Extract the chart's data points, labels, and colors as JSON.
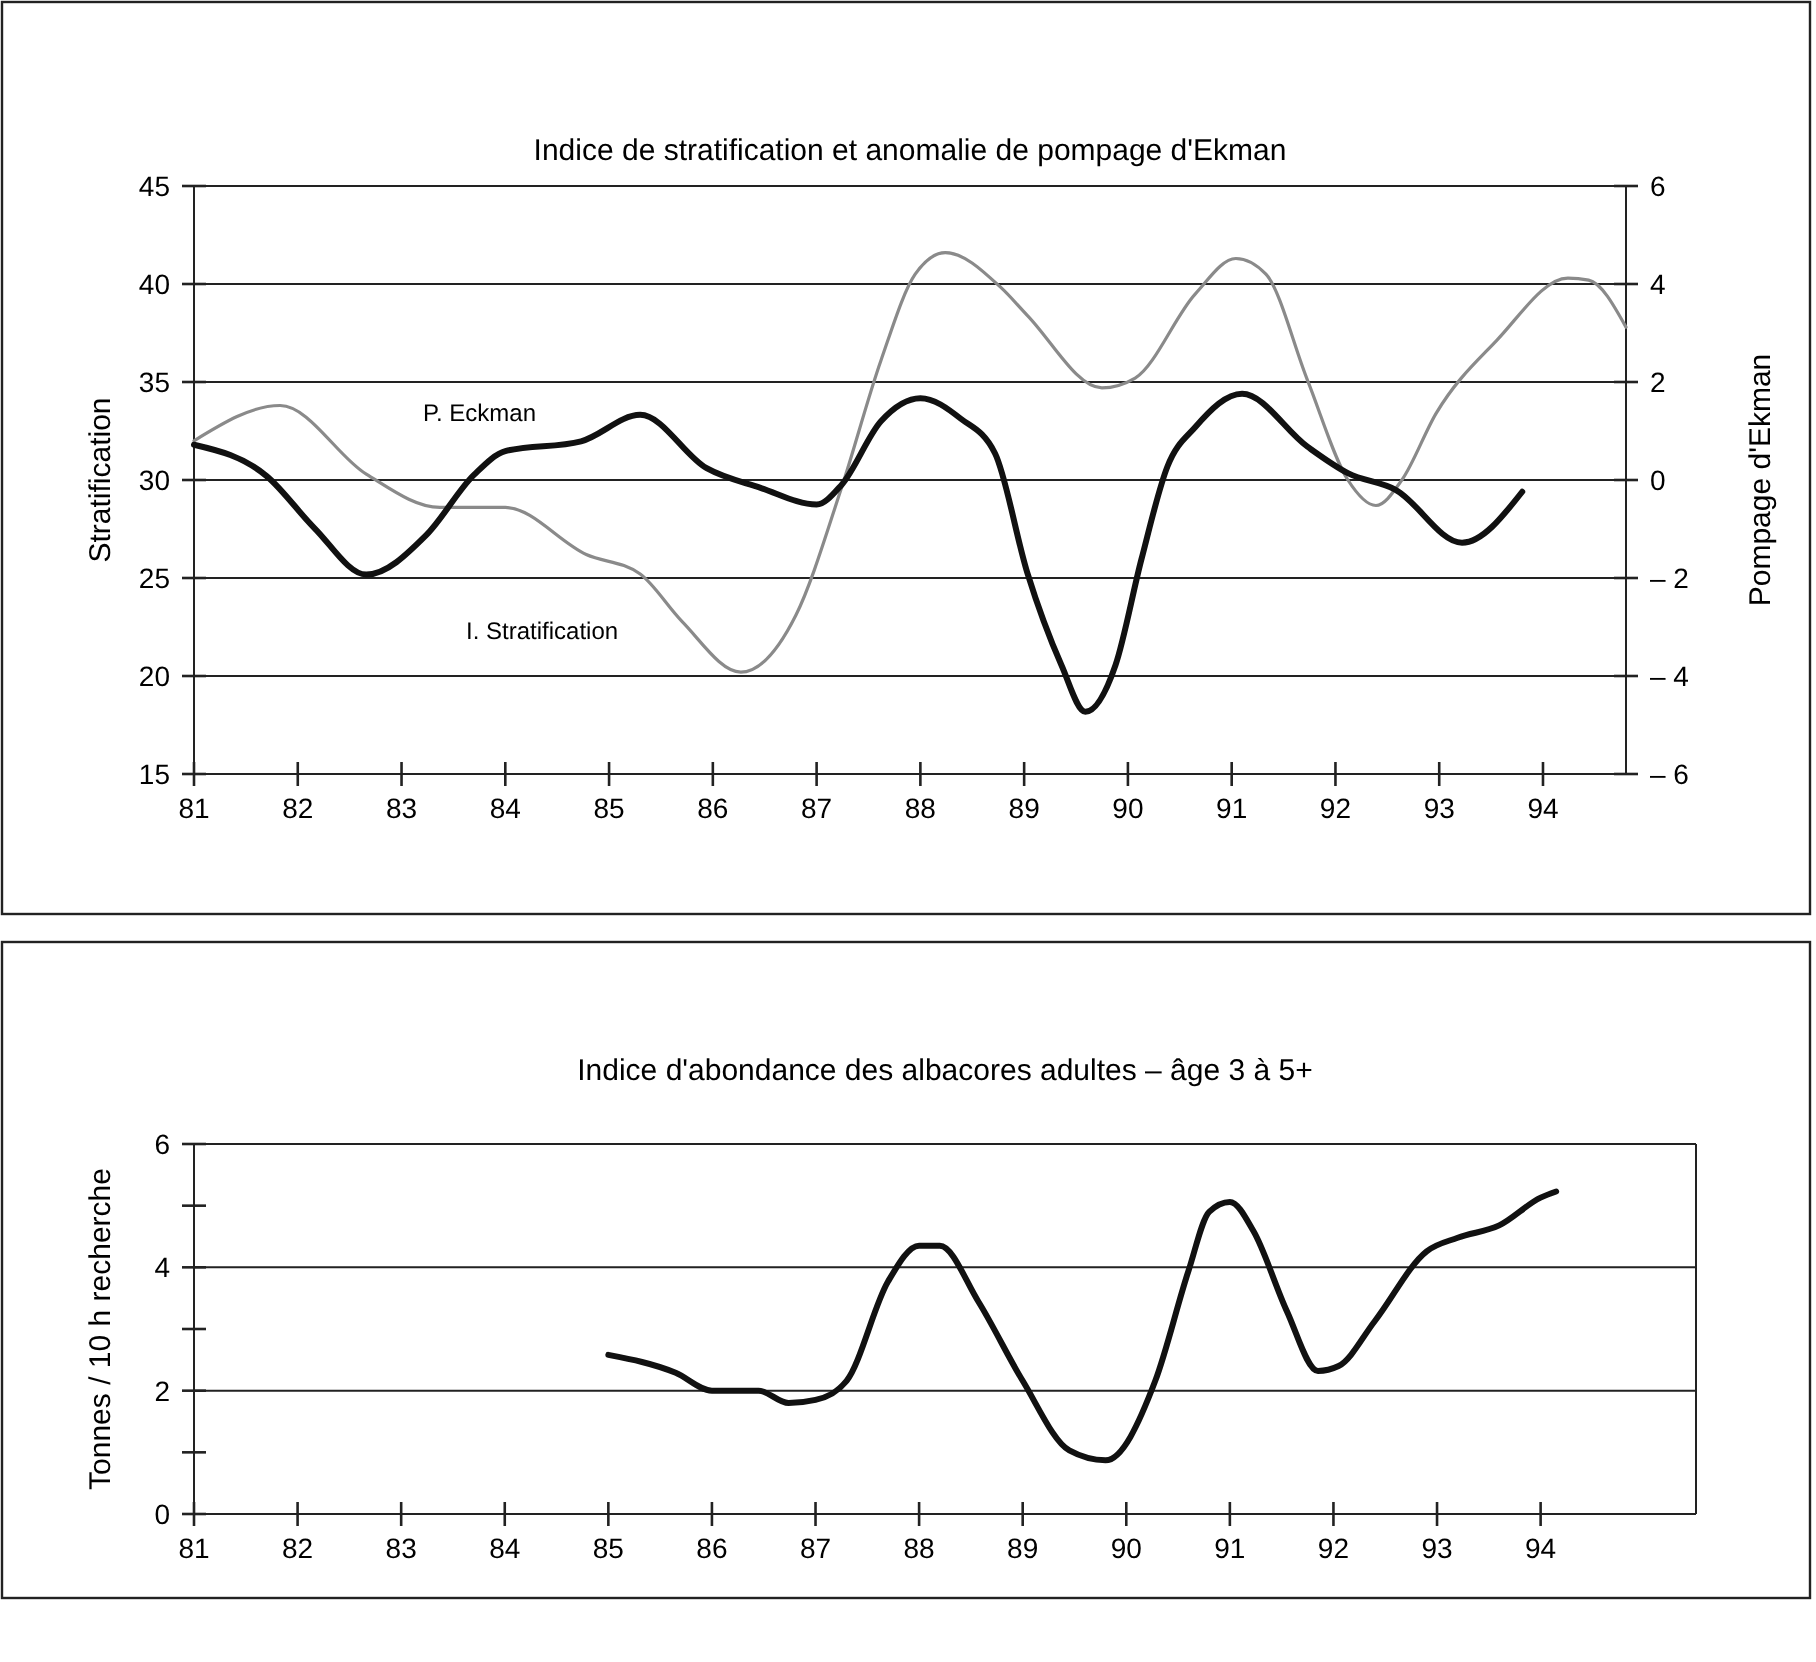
{
  "chart_data": [
    {
      "type": "line",
      "title": "Indice de stratification et anomalie de pompage d'Ekman",
      "ylabel": "Stratification",
      "y2label": "Pompage d'Ekman",
      "xlim": [
        81,
        94.8
      ],
      "xticks": [
        81,
        82,
        83,
        84,
        85,
        86,
        87,
        88,
        89,
        90,
        91,
        92,
        93,
        94
      ],
      "ylim": [
        15,
        45
      ],
      "yticks": [
        15,
        20,
        25,
        30,
        35,
        40,
        45
      ],
      "y2lim": [
        -6,
        6
      ],
      "y2ticks": [
        {
          "value": -6,
          "label": "– 6"
        },
        {
          "value": -4,
          "label": "– 4"
        },
        {
          "value": -2,
          "label": "– 2"
        },
        0,
        2,
        4,
        6
      ],
      "grid": "y",
      "series": [
        {
          "name": "I. Stratification",
          "color": "#8a8a8a",
          "x": [
            81.0,
            81.83,
            82.66,
            83.37,
            84.0,
            84.78,
            85.3,
            85.7,
            86.27,
            86.8,
            87.24,
            87.62,
            87.95,
            88.24,
            88.78,
            89.03,
            89.75,
            90.07,
            90.65,
            91.04,
            91.33,
            91.73,
            92.12,
            92.39,
            92.64,
            92.97,
            93.55,
            94.24,
            94.44,
            94.8
          ],
          "values": [
            32.0,
            33.8,
            30.3,
            28.6,
            28.6,
            26.2,
            25.2,
            22.8,
            20.2,
            23.1,
            29.6,
            36.1,
            40.5,
            41.6,
            39.8,
            38.4,
            34.7,
            35.2,
            39.5,
            41.3,
            40.5,
            35.1,
            30.0,
            28.7,
            30.0,
            33.4,
            37.1,
            40.3,
            40.2,
            37.8
          ]
        },
        {
          "name": "P. Eckman",
          "color": "#111111",
          "axis": "y2",
          "x": [
            81.0,
            81.7,
            82.16,
            82.66,
            83.24,
            83.7,
            84.0,
            84.73,
            85.3,
            85.94,
            86.46,
            87.0,
            87.24,
            87.62,
            88.0,
            88.39,
            88.72,
            89.03,
            89.36,
            89.59,
            89.88,
            90.13,
            90.38,
            90.65,
            91.1,
            91.73,
            92.12,
            92.58,
            93.22,
            93.8
          ],
          "values": [
            0.72,
            0.08,
            -0.98,
            -1.93,
            -1.12,
            0.11,
            0.59,
            0.79,
            1.33,
            0.24,
            -0.16,
            -0.5,
            -0.1,
            1.2,
            1.67,
            1.25,
            0.54,
            -1.89,
            -3.78,
            -4.73,
            -3.78,
            -1.62,
            0.27,
            1.08,
            1.76,
            0.68,
            0.14,
            -0.2,
            -1.28,
            -0.24
          ]
        }
      ]
    },
    {
      "type": "line",
      "title": "Indice d'abondance des albacores adultes – âge 3 à 5+",
      "ylabel": "Tonnes / 10 h recherche",
      "xlim": [
        81,
        95.5
      ],
      "xticks": [
        81,
        82,
        83,
        84,
        85,
        86,
        87,
        88,
        89,
        90,
        91,
        92,
        93,
        94
      ],
      "ylim": [
        0,
        6
      ],
      "yticks": [
        0,
        {
          "value": 1,
          "label": null
        },
        2,
        {
          "value": 3,
          "label": null
        },
        4,
        {
          "value": 5,
          "label": null
        },
        6
      ],
      "grid": "y",
      "series": [
        {
          "color": "#111111",
          "x": [
            85.0,
            85.65,
            86.0,
            86.45,
            86.74,
            87.0,
            87.3,
            87.7,
            88.0,
            88.2,
            88.57,
            89.0,
            89.45,
            89.8,
            90.28,
            90.6,
            90.8,
            91.0,
            91.23,
            91.55,
            91.85,
            92.05,
            92.4,
            92.9,
            93.2,
            93.6,
            94.0,
            94.15
          ],
          "values": [
            2.58,
            2.29,
            2.0,
            2.0,
            1.8,
            1.85,
            2.16,
            3.77,
            4.35,
            4.35,
            3.45,
            2.16,
            1.03,
            0.87,
            2.16,
            3.94,
            4.9,
            5.06,
            4.58,
            3.29,
            2.32,
            2.4,
            3.13,
            4.26,
            4.48,
            4.68,
            5.13,
            5.23
          ]
        }
      ]
    }
  ]
}
